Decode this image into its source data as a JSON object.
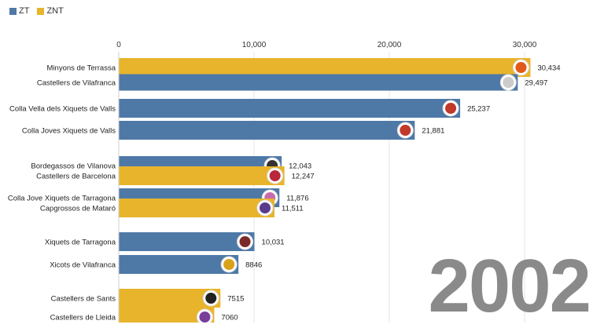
{
  "legend": {
    "items": [
      {
        "label": "ZT",
        "color": "#4e79a7"
      },
      {
        "label": "ZNT",
        "color": "#e8b42c"
      }
    ]
  },
  "year": "2002",
  "chart_data": {
    "type": "bar",
    "orientation": "horizontal",
    "xlim": [
      0,
      35000
    ],
    "ticks": [
      0,
      10000,
      20000,
      30000
    ],
    "tick_labels": [
      "0",
      "10,000",
      "20,000",
      "30,000"
    ],
    "grid": true,
    "colors": {
      "ZT": "#4e79a7",
      "ZNT": "#e8b42c"
    },
    "series": [
      {
        "name": "ZNT",
        "values": [
          30434,
          null,
          null,
          null,
          null,
          12247,
          null,
          11511,
          null,
          null,
          7515,
          7060
        ]
      },
      {
        "name": "ZT",
        "values": [
          null,
          29497,
          25237,
          21881,
          12043,
          null,
          11876,
          null,
          10031,
          8846,
          null,
          null
        ]
      }
    ],
    "categories": [
      "Minyons de Terrassa",
      "Castellers de Vilafranca",
      "Colla Vella dels Xiquets de Valls",
      "Colla Joves Xiquets de Valls",
      "Bordegassos de Vilanova",
      "Castellers de Barcelona",
      "Colla Jove Xiquets de Tarragona",
      "Capgrossos de Mataró",
      "Xiquets de Tarragona",
      "Xicots de Vilafranca",
      "Castellers de Sants",
      "Castellers de Lleida"
    ],
    "bars": [
      {
        "category": "Minyons de Terrassa",
        "value": 30434,
        "value_label": "30,434",
        "series": "ZNT"
      },
      {
        "category": "Castellers de Vilafranca",
        "value": 29497,
        "value_label": "29,497",
        "series": "ZT"
      },
      {
        "category": "Colla Vella dels Xiquets de Valls",
        "value": 25237,
        "value_label": "25,237",
        "series": "ZT"
      },
      {
        "category": "Colla Joves Xiquets de Valls",
        "value": 21881,
        "value_label": "21,881",
        "series": "ZT"
      },
      {
        "category": "Bordegassos de Vilanova",
        "value": 12043,
        "value_label": "12,043",
        "series": "ZT"
      },
      {
        "category": "Castellers de Barcelona",
        "value": 12247,
        "value_label": "12,247",
        "series": "ZNT"
      },
      {
        "category": "Colla Jove Xiquets de Tarragona",
        "value": 11876,
        "value_label": "11,876",
        "series": "ZT"
      },
      {
        "category": "Capgrossos de Mataró",
        "value": 11511,
        "value_label": "11,511",
        "series": "ZNT"
      },
      {
        "category": "Xiquets de Tarragona",
        "value": 10031,
        "value_label": "10,031",
        "series": "ZT"
      },
      {
        "category": "Xicots de Vilafranca",
        "value": 8846,
        "value_label": "8846",
        "series": "ZT"
      },
      {
        "category": "Castellers de Sants",
        "value": 7515,
        "value_label": "7515",
        "series": "ZNT"
      },
      {
        "category": "Castellers de Lleida",
        "value": 7060,
        "value_label": "7060",
        "series": "ZNT"
      }
    ]
  }
}
